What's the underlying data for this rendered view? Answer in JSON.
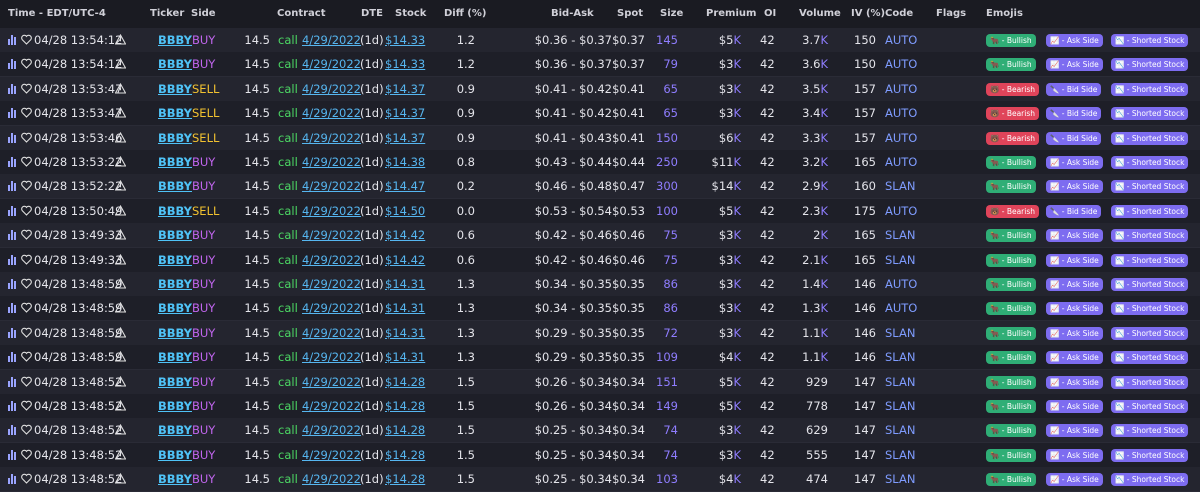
{
  "table": {
    "headers": {
      "time": "Time - EDT/UTC-4",
      "ticker": "Ticker",
      "side": "Side",
      "contract": "Contract",
      "dte": "DTE",
      "stock": "Stock",
      "diff": "Diff (%)",
      "bid_ask": "Bid-Ask",
      "spot": "Spot",
      "size": "Size",
      "premium": "Premium",
      "oi": "OI",
      "volume": "Volume",
      "iv": "IV (%)",
      "code": "Code",
      "flags": "Flags",
      "emojis": "Emojis"
    },
    "rows": [
      {
        "time": "04/28 13:54:12",
        "ticker": "BBBY",
        "side": "BUY",
        "strike": "14.5",
        "type": "call",
        "expiry": "4/29/2022",
        "dte": "(1d)",
        "stock": "$14.33",
        "diff": "1.2",
        "bid_ask": "$0.36 - $0.37",
        "spot": "$0.37",
        "size": "145",
        "premium": {
          "amount": "$5",
          "unit": "K"
        },
        "oi": "42",
        "volume": {
          "amount": "3.7",
          "unit": "K"
        },
        "iv": "150",
        "code": "AUTO",
        "emojis": [
          "🐂 - Bullish",
          "📈 - Ask Side",
          "📉 - Shorted Stock"
        ]
      },
      {
        "time": "04/28 13:54:12",
        "ticker": "BBBY",
        "side": "BUY",
        "strike": "14.5",
        "type": "call",
        "expiry": "4/29/2022",
        "dte": "(1d)",
        "stock": "$14.33",
        "diff": "1.2",
        "bid_ask": "$0.36 - $0.37",
        "spot": "$0.37",
        "size": "79",
        "premium": {
          "amount": "$3",
          "unit": "K"
        },
        "oi": "42",
        "volume": {
          "amount": "3.6",
          "unit": "K"
        },
        "iv": "150",
        "code": "AUTO",
        "emojis": [
          "🐂 - Bullish",
          "📈 - Ask Side",
          "📉 - Shorted Stock"
        ]
      },
      {
        "time": "04/28 13:53:47",
        "ticker": "BBBY",
        "side": "SELL",
        "strike": "14.5",
        "type": "call",
        "expiry": "4/29/2022",
        "dte": "(1d)",
        "stock": "$14.37",
        "diff": "0.9",
        "bid_ask": "$0.41 - $0.42",
        "spot": "$0.41",
        "size": "65",
        "premium": {
          "amount": "$3",
          "unit": "K"
        },
        "oi": "42",
        "volume": {
          "amount": "3.5",
          "unit": "K"
        },
        "iv": "157",
        "code": "AUTO",
        "emojis": [
          "🐻 - Bearish",
          "🔪 - Bid Side",
          "📉 - Shorted Stock"
        ]
      },
      {
        "time": "04/28 13:53:47",
        "ticker": "BBBY",
        "side": "SELL",
        "strike": "14.5",
        "type": "call",
        "expiry": "4/29/2022",
        "dte": "(1d)",
        "stock": "$14.37",
        "diff": "0.9",
        "bid_ask": "$0.41 - $0.42",
        "spot": "$0.41",
        "size": "65",
        "premium": {
          "amount": "$3",
          "unit": "K"
        },
        "oi": "42",
        "volume": {
          "amount": "3.4",
          "unit": "K"
        },
        "iv": "157",
        "code": "AUTO",
        "emojis": [
          "🐻 - Bearish",
          "🔪 - Bid Side",
          "📉 - Shorted Stock"
        ]
      },
      {
        "time": "04/28 13:53:46",
        "ticker": "BBBY",
        "side": "SELL",
        "strike": "14.5",
        "type": "call",
        "expiry": "4/29/2022",
        "dte": "(1d)",
        "stock": "$14.37",
        "diff": "0.9",
        "bid_ask": "$0.41 - $0.43",
        "spot": "$0.41",
        "size": "150",
        "premium": {
          "amount": "$6",
          "unit": "K"
        },
        "oi": "42",
        "volume": {
          "amount": "3.3",
          "unit": "K"
        },
        "iv": "157",
        "code": "AUTO",
        "emojis": [
          "🐻 - Bearish",
          "🔪 - Bid Side",
          "📉 - Shorted Stock"
        ]
      },
      {
        "time": "04/28 13:53:22",
        "ticker": "BBBY",
        "side": "BUY",
        "strike": "14.5",
        "type": "call",
        "expiry": "4/29/2022",
        "dte": "(1d)",
        "stock": "$14.38",
        "diff": "0.8",
        "bid_ask": "$0.43 - $0.44",
        "spot": "$0.44",
        "size": "250",
        "premium": {
          "amount": "$11",
          "unit": "K"
        },
        "oi": "42",
        "volume": {
          "amount": "3.2",
          "unit": "K"
        },
        "iv": "165",
        "code": "AUTO",
        "emojis": [
          "🐂 - Bullish",
          "📈 - Ask Side",
          "📉 - Shorted Stock"
        ]
      },
      {
        "time": "04/28 13:52:22",
        "ticker": "BBBY",
        "side": "BUY",
        "strike": "14.5",
        "type": "call",
        "expiry": "4/29/2022",
        "dte": "(1d)",
        "stock": "$14.47",
        "diff": "0.2",
        "bid_ask": "$0.46 - $0.48",
        "spot": "$0.47",
        "size": "300",
        "premium": {
          "amount": "$14",
          "unit": "K"
        },
        "oi": "42",
        "volume": {
          "amount": "2.9",
          "unit": "K"
        },
        "iv": "160",
        "code": "SLAN",
        "emojis": [
          "🐂 - Bullish",
          "📈 - Ask Side",
          "📉 - Shorted Stock"
        ]
      },
      {
        "time": "04/28 13:50:49",
        "ticker": "BBBY",
        "side": "SELL",
        "strike": "14.5",
        "type": "call",
        "expiry": "4/29/2022",
        "dte": "(1d)",
        "stock": "$14.50",
        "diff": "0.0",
        "bid_ask": "$0.53 - $0.54",
        "spot": "$0.53",
        "size": "100",
        "premium": {
          "amount": "$5",
          "unit": "K"
        },
        "oi": "42",
        "volume": {
          "amount": "2.3",
          "unit": "K"
        },
        "iv": "175",
        "code": "AUTO",
        "emojis": [
          "🐻 - Bearish",
          "🔪 - Bid Side",
          "📉 - Shorted Stock"
        ]
      },
      {
        "time": "04/28 13:49:33",
        "ticker": "BBBY",
        "side": "BUY",
        "strike": "14.5",
        "type": "call",
        "expiry": "4/29/2022",
        "dte": "(1d)",
        "stock": "$14.42",
        "diff": "0.6",
        "bid_ask": "$0.42 - $0.46",
        "spot": "$0.46",
        "size": "75",
        "premium": {
          "amount": "$3",
          "unit": "K"
        },
        "oi": "42",
        "volume": {
          "amount": "2",
          "unit": "K"
        },
        "iv": "165",
        "code": "SLAN",
        "emojis": [
          "🐂 - Bullish",
          "📈 - Ask Side",
          "📉 - Shorted Stock"
        ]
      },
      {
        "time": "04/28 13:49:33",
        "ticker": "BBBY",
        "side": "BUY",
        "strike": "14.5",
        "type": "call",
        "expiry": "4/29/2022",
        "dte": "(1d)",
        "stock": "$14.42",
        "diff": "0.6",
        "bid_ask": "$0.42 - $0.46",
        "spot": "$0.46",
        "size": "75",
        "premium": {
          "amount": "$3",
          "unit": "K"
        },
        "oi": "42",
        "volume": {
          "amount": "2.1",
          "unit": "K"
        },
        "iv": "165",
        "code": "SLAN",
        "emojis": [
          "🐂 - Bullish",
          "📈 - Ask Side",
          "📉 - Shorted Stock"
        ]
      },
      {
        "time": "04/28 13:48:59",
        "ticker": "BBBY",
        "side": "BUY",
        "strike": "14.5",
        "type": "call",
        "expiry": "4/29/2022",
        "dte": "(1d)",
        "stock": "$14.31",
        "diff": "1.3",
        "bid_ask": "$0.34 - $0.35",
        "spot": "$0.35",
        "size": "86",
        "premium": {
          "amount": "$3",
          "unit": "K"
        },
        "oi": "42",
        "volume": {
          "amount": "1.4",
          "unit": "K"
        },
        "iv": "146",
        "code": "AUTO",
        "emojis": [
          "🐂 - Bullish",
          "📈 - Ask Side",
          "📉 - Shorted Stock"
        ]
      },
      {
        "time": "04/28 13:48:59",
        "ticker": "BBBY",
        "side": "BUY",
        "strike": "14.5",
        "type": "call",
        "expiry": "4/29/2022",
        "dte": "(1d)",
        "stock": "$14.31",
        "diff": "1.3",
        "bid_ask": "$0.34 - $0.35",
        "spot": "$0.35",
        "size": "86",
        "premium": {
          "amount": "$3",
          "unit": "K"
        },
        "oi": "42",
        "volume": {
          "amount": "1.3",
          "unit": "K"
        },
        "iv": "146",
        "code": "AUTO",
        "emojis": [
          "🐂 - Bullish",
          "📈 - Ask Side",
          "📉 - Shorted Stock"
        ]
      },
      {
        "time": "04/28 13:48:59",
        "ticker": "BBBY",
        "side": "BUY",
        "strike": "14.5",
        "type": "call",
        "expiry": "4/29/2022",
        "dte": "(1d)",
        "stock": "$14.31",
        "diff": "1.3",
        "bid_ask": "$0.29 - $0.35",
        "spot": "$0.35",
        "size": "72",
        "premium": {
          "amount": "$3",
          "unit": "K"
        },
        "oi": "42",
        "volume": {
          "amount": "1.1",
          "unit": "K"
        },
        "iv": "146",
        "code": "SLAN",
        "emojis": [
          "🐂 - Bullish",
          "📈 - Ask Side",
          "📉 - Shorted Stock"
        ]
      },
      {
        "time": "04/28 13:48:59",
        "ticker": "BBBY",
        "side": "BUY",
        "strike": "14.5",
        "type": "call",
        "expiry": "4/29/2022",
        "dte": "(1d)",
        "stock": "$14.31",
        "diff": "1.3",
        "bid_ask": "$0.29 - $0.35",
        "spot": "$0.35",
        "size": "109",
        "premium": {
          "amount": "$4",
          "unit": "K"
        },
        "oi": "42",
        "volume": {
          "amount": "1.1",
          "unit": "K"
        },
        "iv": "146",
        "code": "SLAN",
        "emojis": [
          "🐂 - Bullish",
          "📈 - Ask Side",
          "📉 - Shorted Stock"
        ]
      },
      {
        "time": "04/28 13:48:52",
        "ticker": "BBBY",
        "side": "BUY",
        "strike": "14.5",
        "type": "call",
        "expiry": "4/29/2022",
        "dte": "(1d)",
        "stock": "$14.28",
        "diff": "1.5",
        "bid_ask": "$0.26 - $0.34",
        "spot": "$0.34",
        "size": "151",
        "premium": {
          "amount": "$5",
          "unit": "K"
        },
        "oi": "42",
        "volume": {
          "amount": "929"
        },
        "iv": "147",
        "code": "SLAN",
        "emojis": [
          "🐂 - Bullish",
          "📈 - Ask Side",
          "📉 - Shorted Stock"
        ]
      },
      {
        "time": "04/28 13:48:52",
        "ticker": "BBBY",
        "side": "BUY",
        "strike": "14.5",
        "type": "call",
        "expiry": "4/29/2022",
        "dte": "(1d)",
        "stock": "$14.28",
        "diff": "1.5",
        "bid_ask": "$0.26 - $0.34",
        "spot": "$0.34",
        "size": "149",
        "premium": {
          "amount": "$5",
          "unit": "K"
        },
        "oi": "42",
        "volume": {
          "amount": "778"
        },
        "iv": "147",
        "code": "SLAN",
        "emojis": [
          "🐂 - Bullish",
          "📈 - Ask Side",
          "📉 - Shorted Stock"
        ]
      },
      {
        "time": "04/28 13:48:52",
        "ticker": "BBBY",
        "side": "BUY",
        "strike": "14.5",
        "type": "call",
        "expiry": "4/29/2022",
        "dte": "(1d)",
        "stock": "$14.28",
        "diff": "1.5",
        "bid_ask": "$0.25 - $0.34",
        "spot": "$0.34",
        "size": "74",
        "premium": {
          "amount": "$3",
          "unit": "K"
        },
        "oi": "42",
        "volume": {
          "amount": "629"
        },
        "iv": "147",
        "code": "SLAN",
        "emojis": [
          "🐂 - Bullish",
          "📈 - Ask Side",
          "📉 - Shorted Stock"
        ]
      },
      {
        "time": "04/28 13:48:52",
        "ticker": "BBBY",
        "side": "BUY",
        "strike": "14.5",
        "type": "call",
        "expiry": "4/29/2022",
        "dte": "(1d)",
        "stock": "$14.28",
        "diff": "1.5",
        "bid_ask": "$0.25 - $0.34",
        "spot": "$0.34",
        "size": "74",
        "premium": {
          "amount": "$3",
          "unit": "K"
        },
        "oi": "42",
        "volume": {
          "amount": "555"
        },
        "iv": "147",
        "code": "SLAN",
        "emojis": [
          "🐂 - Bullish",
          "📈 - Ask Side",
          "📉 - Shorted Stock"
        ]
      },
      {
        "time": "04/28 13:48:52",
        "ticker": "BBBY",
        "side": "BUY",
        "strike": "14.5",
        "type": "call",
        "expiry": "4/29/2022",
        "dte": "(1d)",
        "stock": "$14.28",
        "diff": "1.5",
        "bid_ask": "$0.25 - $0.34",
        "spot": "$0.34",
        "size": "103",
        "premium": {
          "amount": "$4",
          "unit": "K"
        },
        "oi": "42",
        "volume": {
          "amount": "474"
        },
        "iv": "147",
        "code": "SLAN",
        "emojis": [
          "🐂 - Bullish",
          "📈 - Ask Side",
          "📉 - Shorted Stock"
        ]
      }
    ]
  }
}
